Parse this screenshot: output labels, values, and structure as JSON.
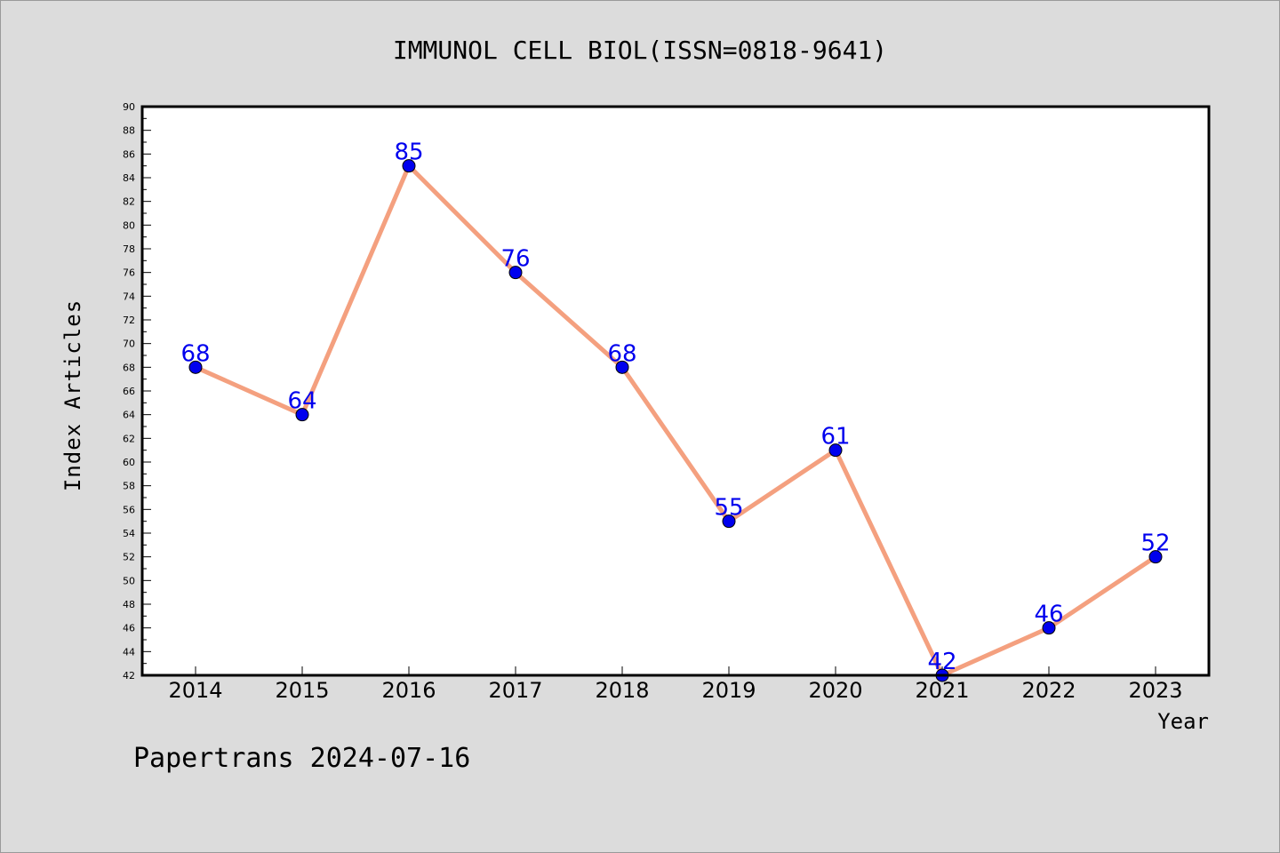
{
  "chart_data": {
    "type": "line",
    "title": "IMMUNOL CELL BIOL(ISSN=0818-9641)",
    "xlabel": "Year",
    "ylabel": "Index Articles",
    "categories": [
      "2014",
      "2015",
      "2016",
      "2017",
      "2018",
      "2019",
      "2020",
      "2021",
      "2022",
      "2023"
    ],
    "series": [
      {
        "values": [
          68,
          64,
          85,
          76,
          68,
          55,
          61,
          42,
          46,
          52
        ]
      }
    ],
    "ylim": [
      42,
      90
    ],
    "ytick_step": 2,
    "grid": false,
    "data_labels": true,
    "colors": {
      "line": "#f4a07f",
      "marker": "#0000ee",
      "data_label": "#0000ee",
      "plot_background": "#ffffff",
      "page_background": "#dcdcdc"
    }
  },
  "footer": "Papertrans 2024-07-16"
}
